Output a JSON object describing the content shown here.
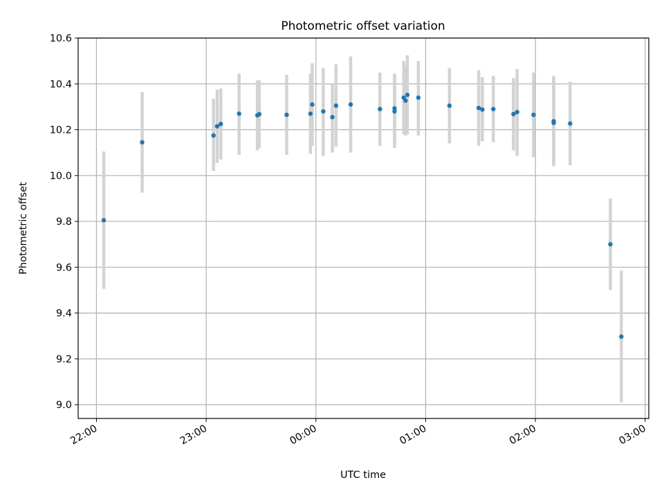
{
  "chart_data": {
    "type": "scatter",
    "title": "Photometric offset variation",
    "xlabel": "UTC time",
    "ylabel": "Photometric offset",
    "x_axis": {
      "type": "time",
      "range": [
        "21:50",
        "03:02"
      ],
      "ticks": [
        "22:00",
        "23:00",
        "00:00",
        "01:00",
        "02:00",
        "03:00"
      ]
    },
    "y_axis": {
      "range": [
        8.94,
        10.6
      ],
      "ticks": [
        "9.0",
        "9.2",
        "9.4",
        "9.6",
        "9.8",
        "10.0",
        "10.2",
        "10.4",
        "10.6"
      ]
    },
    "grid": true,
    "point_color": "#1f77b4",
    "errorbar_color": "#d3d3d3",
    "points": [
      {
        "t": "22:04",
        "y": 9.805,
        "lo": 9.505,
        "hi": 10.105
      },
      {
        "t": "22:25",
        "y": 10.145,
        "lo": 9.925,
        "hi": 10.365
      },
      {
        "t": "23:04",
        "y": 10.175,
        "lo": 10.02,
        "hi": 10.335
      },
      {
        "t": "23:06",
        "y": 10.215,
        "lo": 10.055,
        "hi": 10.375
      },
      {
        "t": "23:08",
        "y": 10.225,
        "lo": 10.07,
        "hi": 10.38
      },
      {
        "t": "23:18",
        "y": 10.27,
        "lo": 10.09,
        "hi": 10.445
      },
      {
        "t": "23:28",
        "y": 10.263,
        "lo": 10.11,
        "hi": 10.415
      },
      {
        "t": "23:29",
        "y": 10.268,
        "lo": 10.12,
        "hi": 10.415
      },
      {
        "t": "23:44",
        "y": 10.265,
        "lo": 10.09,
        "hi": 10.44
      },
      {
        "t": "23:57",
        "y": 10.27,
        "lo": 10.095,
        "hi": 10.445
      },
      {
        "t": "23:58",
        "y": 10.31,
        "lo": 10.13,
        "hi": 10.49
      },
      {
        "t": "00:04",
        "y": 10.28,
        "lo": 10.085,
        "hi": 10.47
      },
      {
        "t": "00:09",
        "y": 10.255,
        "lo": 10.1,
        "hi": 10.4
      },
      {
        "t": "00:11",
        "y": 10.305,
        "lo": 10.125,
        "hi": 10.485
      },
      {
        "t": "00:19",
        "y": 10.31,
        "lo": 10.1,
        "hi": 10.52
      },
      {
        "t": "00:35",
        "y": 10.29,
        "lo": 10.13,
        "hi": 10.45
      },
      {
        "t": "00:43",
        "y": 10.293,
        "lo": 10.14,
        "hi": 10.445
      },
      {
        "t": "00:43",
        "y": 10.28,
        "lo": 10.12,
        "hi": 10.44
      },
      {
        "t": "00:48",
        "y": 10.34,
        "lo": 10.18,
        "hi": 10.5
      },
      {
        "t": "00:49",
        "y": 10.327,
        "lo": 10.175,
        "hi": 10.48
      },
      {
        "t": "00:50",
        "y": 10.352,
        "lo": 10.18,
        "hi": 10.525
      },
      {
        "t": "00:56",
        "y": 10.34,
        "lo": 10.175,
        "hi": 10.5
      },
      {
        "t": "01:13",
        "y": 10.305,
        "lo": 10.14,
        "hi": 10.47
      },
      {
        "t": "01:29",
        "y": 10.295,
        "lo": 10.13,
        "hi": 10.46
      },
      {
        "t": "01:31",
        "y": 10.288,
        "lo": 10.15,
        "hi": 10.43
      },
      {
        "t": "01:37",
        "y": 10.29,
        "lo": 10.145,
        "hi": 10.435
      },
      {
        "t": "01:48",
        "y": 10.268,
        "lo": 10.11,
        "hi": 10.425
      },
      {
        "t": "01:50",
        "y": 10.277,
        "lo": 10.085,
        "hi": 10.465
      },
      {
        "t": "01:59",
        "y": 10.265,
        "lo": 10.08,
        "hi": 10.45
      },
      {
        "t": "02:10",
        "y": 10.237,
        "lo": 10.04,
        "hi": 10.435
      },
      {
        "t": "02:10",
        "y": 10.23,
        "lo": 10.05,
        "hi": 10.41
      },
      {
        "t": "02:19",
        "y": 10.227,
        "lo": 10.045,
        "hi": 10.41
      },
      {
        "t": "02:41",
        "y": 9.7,
        "lo": 9.5,
        "hi": 9.9
      },
      {
        "t": "02:47",
        "y": 9.297,
        "lo": 9.01,
        "hi": 9.585
      }
    ]
  }
}
